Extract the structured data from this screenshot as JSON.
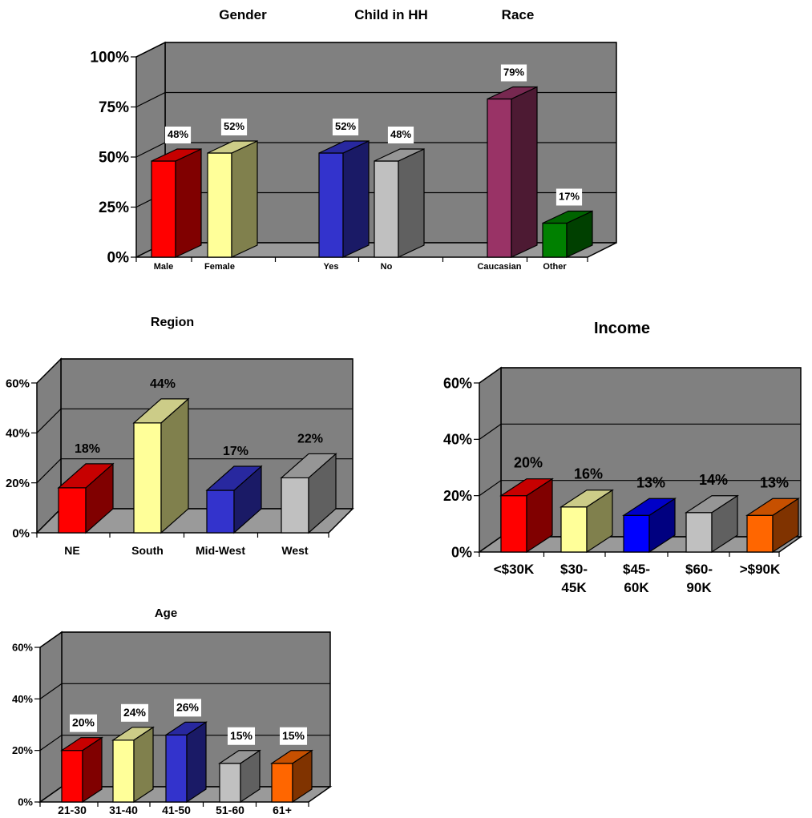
{
  "chart_data": [
    {
      "type": "bar",
      "group_titles": [
        "Gender",
        "Child in HH",
        "Race"
      ],
      "categories": [
        "Male",
        "Female",
        "Yes",
        "No",
        "Caucasian",
        "Other"
      ],
      "values": [
        48,
        52,
        52,
        48,
        79,
        17
      ],
      "value_labels": [
        "48%",
        "52%",
        "52%",
        "48%",
        "79%",
        "17%"
      ],
      "ylim": [
        0,
        100
      ],
      "yticks": [
        "0%",
        "25%",
        "50%",
        "75%",
        "100%"
      ],
      "colors": [
        "#ff0000",
        "#ffff99",
        "#3333cc",
        "#c0c0c0",
        "#993366",
        "#008000"
      ],
      "grid": true,
      "legend": "none"
    },
    {
      "type": "bar",
      "title": "Region",
      "categories": [
        "NE",
        "South",
        "Mid-West",
        "West"
      ],
      "values": [
        18,
        44,
        17,
        22
      ],
      "value_labels": [
        "18%",
        "44%",
        "17%",
        "22%"
      ],
      "ylim": [
        0,
        60
      ],
      "yticks": [
        "0%",
        "20%",
        "40%",
        "60%"
      ],
      "colors": [
        "#ff0000",
        "#ffff99",
        "#3333cc",
        "#c0c0c0"
      ],
      "grid": true,
      "legend": "none"
    },
    {
      "type": "bar",
      "title": "Income",
      "categories": [
        "<$30K",
        "$30-\n45K",
        "$45-\n60K",
        "$60-\n90K",
        ">$90K"
      ],
      "values": [
        20,
        16,
        13,
        14,
        13
      ],
      "value_labels": [
        "20%",
        "16%",
        "13%",
        "14%",
        "13%"
      ],
      "ylim": [
        0,
        60
      ],
      "yticks": [
        "0%",
        "20%",
        "40%",
        "60%"
      ],
      "colors": [
        "#ff0000",
        "#ffff99",
        "#0000ff",
        "#c0c0c0",
        "#ff6600"
      ],
      "grid": true,
      "legend": "none"
    },
    {
      "type": "bar",
      "title": "Age",
      "categories": [
        "21-30",
        "31-40",
        "41-50",
        "51-60",
        "61+"
      ],
      "values": [
        20,
        24,
        26,
        15,
        15
      ],
      "value_labels": [
        "20%",
        "24%",
        "26%",
        "15%",
        "15%"
      ],
      "ylim": [
        0,
        60
      ],
      "yticks": [
        "0%",
        "20%",
        "40%",
        "60%"
      ],
      "colors": [
        "#ff0000",
        "#ffff99",
        "#3333cc",
        "#c0c0c0",
        "#ff6600"
      ],
      "grid": true,
      "legend": "none"
    }
  ]
}
